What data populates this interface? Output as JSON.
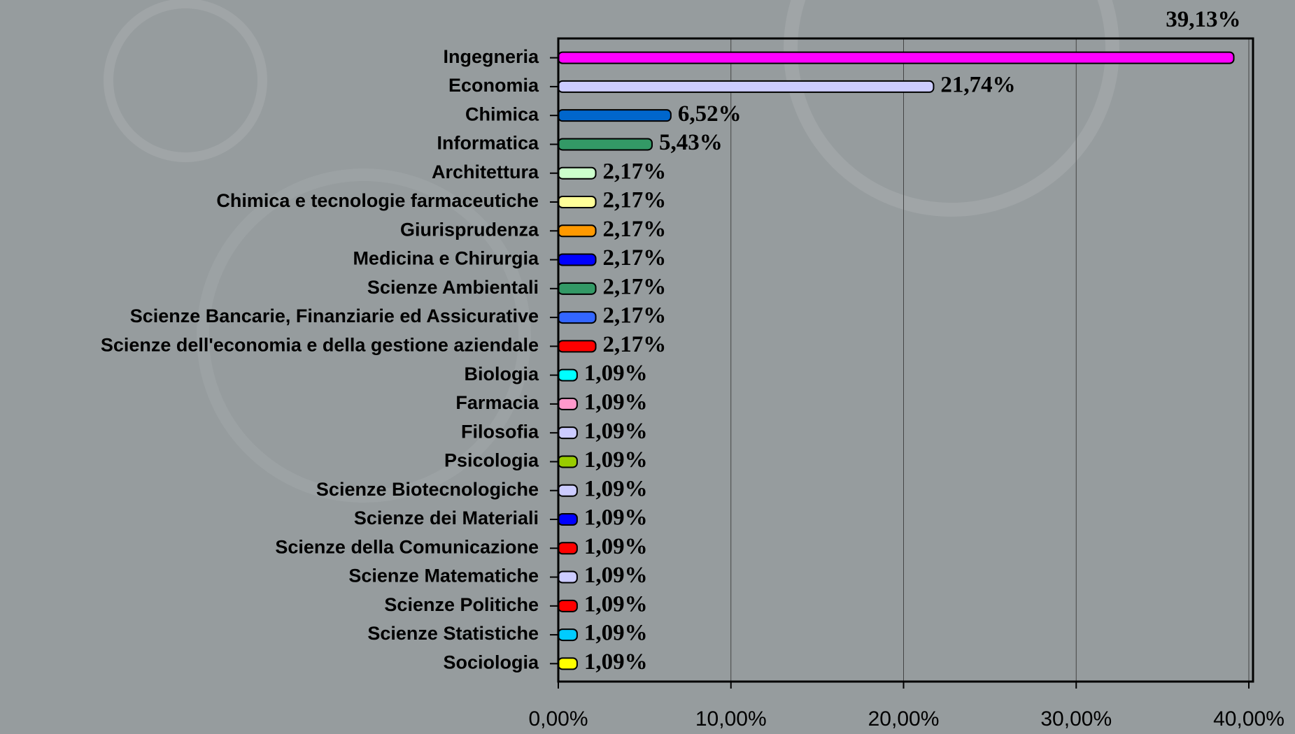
{
  "chart_data": {
    "type": "bar",
    "orientation": "horizontal",
    "categories": [
      "Ingegneria",
      "Economia",
      "Chimica",
      "Informatica",
      "Architettura",
      "Chimica e tecnologie farmaceutiche",
      "Giurisprudenza",
      "Medicina e Chirurgia",
      "Scienze Ambientali",
      "Scienze Bancarie, Finanziarie ed Assicurative",
      "Scienze dell'economia e della gestione aziendale",
      "Biologia",
      "Farmacia",
      "Filosofia",
      "Psicologia",
      "Scienze Biotecnologiche",
      "Scienze dei Materiali",
      "Scienze della Comunicazione",
      "Scienze Matematiche",
      "Scienze Politiche",
      "Scienze Statistiche",
      "Sociologia"
    ],
    "values": [
      39.13,
      21.74,
      6.52,
      5.43,
      2.17,
      2.17,
      2.17,
      2.17,
      2.17,
      2.17,
      2.17,
      1.09,
      1.09,
      1.09,
      1.09,
      1.09,
      1.09,
      1.09,
      1.09,
      1.09,
      1.09,
      1.09
    ],
    "value_labels": [
      "39,13%",
      "21,74%",
      "6,52%",
      "5,43%",
      "2,17%",
      "2,17%",
      "2,17%",
      "2,17%",
      "2,17%",
      "2,17%",
      "2,17%",
      "1,09%",
      "1,09%",
      "1,09%",
      "1,09%",
      "1,09%",
      "1,09%",
      "1,09%",
      "1,09%",
      "1,09%",
      "1,09%",
      "1,09%"
    ],
    "colors": [
      "#ff00ff",
      "#ccccff",
      "#0066cc",
      "#339966",
      "#ccffcc",
      "#ffff99",
      "#ff9900",
      "#0000ff",
      "#339966",
      "#3366ff",
      "#ff0000",
      "#00ffff",
      "#ff99cc",
      "#ccccff",
      "#99cc00",
      "#ccccff",
      "#0000ff",
      "#ff0000",
      "#ccccff",
      "#ff0000",
      "#00ccff",
      "#ffff00"
    ],
    "xlim": [
      0,
      40
    ],
    "xticks": [
      {
        "value": 0,
        "label": "0,00%"
      },
      {
        "value": 10,
        "label": "10,00%"
      },
      {
        "value": 20,
        "label": "20,00%"
      },
      {
        "value": 30,
        "label": "30,00%"
      },
      {
        "value": 40,
        "label": "40,00%"
      }
    ],
    "grid": true
  }
}
